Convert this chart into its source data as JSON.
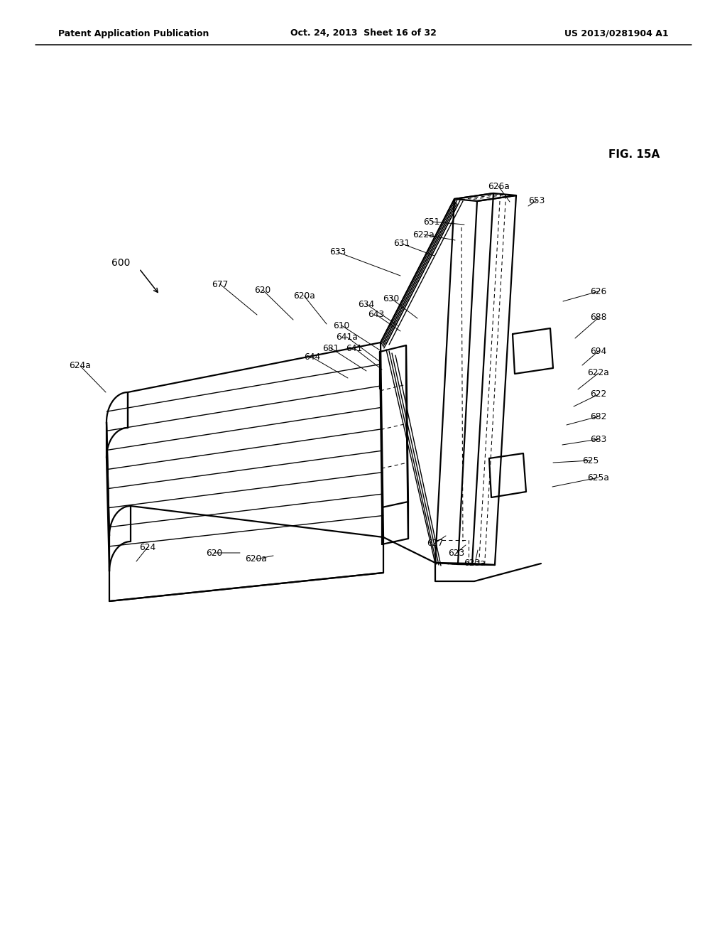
{
  "bg_color": "#ffffff",
  "line_color": "#000000",
  "header_left": "Patent Application Publication",
  "header_center": "Oct. 24, 2013  Sheet 16 of 32",
  "header_right": "US 2013/0281904 A1",
  "fig_label": "FIG. 15A",
  "ref_main": "600"
}
